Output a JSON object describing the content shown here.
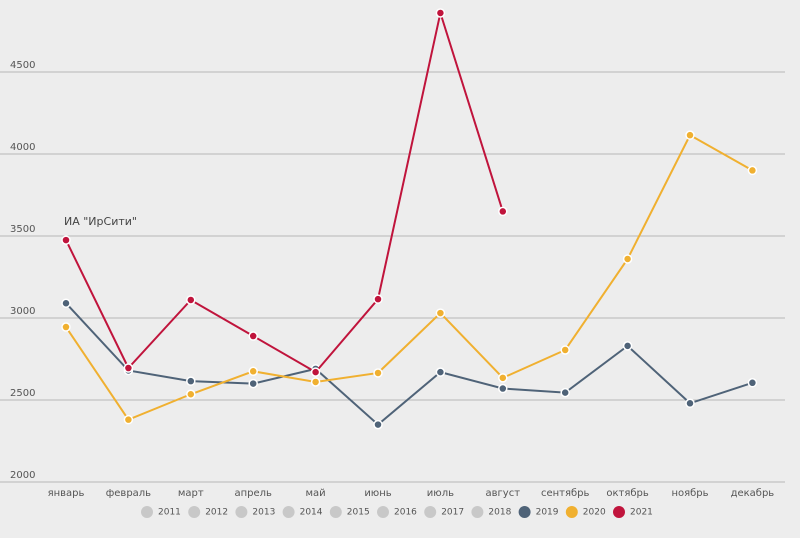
{
  "chart_data": {
    "type": "line",
    "annotation": "ИА \"ИрСити\"",
    "categories": [
      "январь",
      "февраль",
      "март",
      "апрель",
      "май",
      "июнь",
      "июль",
      "август",
      "сентябрь",
      "октябрь",
      "ноябрь",
      "декабрь"
    ],
    "ylim": [
      2000,
      4900
    ],
    "yticks": [
      2000,
      2500,
      3000,
      3500,
      4000,
      4500
    ],
    "grid": true,
    "legend": "bottom",
    "series": [
      {
        "name": "2011",
        "color": "#c8c8c8",
        "values": [
          null,
          null,
          null,
          null,
          null,
          null,
          null,
          null,
          null,
          null,
          null,
          null
        ]
      },
      {
        "name": "2012",
        "color": "#c8c8c8",
        "values": [
          null,
          null,
          null,
          null,
          null,
          null,
          null,
          null,
          null,
          null,
          null,
          null
        ]
      },
      {
        "name": "2013",
        "color": "#c8c8c8",
        "values": [
          null,
          null,
          null,
          null,
          null,
          null,
          null,
          null,
          null,
          null,
          null,
          null
        ]
      },
      {
        "name": "2014",
        "color": "#c8c8c8",
        "values": [
          null,
          null,
          null,
          null,
          null,
          null,
          null,
          null,
          null,
          null,
          null,
          null
        ]
      },
      {
        "name": "2015",
        "color": "#c8c8c8",
        "values": [
          null,
          null,
          null,
          null,
          null,
          null,
          null,
          null,
          null,
          null,
          null,
          null
        ]
      },
      {
        "name": "2016",
        "color": "#c8c8c8",
        "values": [
          null,
          null,
          null,
          null,
          null,
          null,
          null,
          null,
          null,
          null,
          null,
          null
        ]
      },
      {
        "name": "2017",
        "color": "#c8c8c8",
        "values": [
          null,
          null,
          null,
          null,
          null,
          null,
          null,
          null,
          null,
          null,
          null,
          null
        ]
      },
      {
        "name": "2018",
        "color": "#c8c8c8",
        "values": [
          null,
          null,
          null,
          null,
          null,
          null,
          null,
          null,
          null,
          null,
          null,
          null
        ]
      },
      {
        "name": "2019",
        "color": "#4f6378",
        "values": [
          3090,
          2680,
          2615,
          2600,
          2690,
          2350,
          2670,
          2570,
          2545,
          2830,
          2480,
          2605
        ]
      },
      {
        "name": "2020",
        "color": "#f0b030",
        "values": [
          2945,
          2380,
          2535,
          2675,
          2610,
          2665,
          3030,
          2635,
          2805,
          3360,
          4115,
          3900
        ]
      },
      {
        "name": "2021",
        "color": "#c0143c",
        "values": [
          3475,
          2695,
          3110,
          2890,
          2670,
          3115,
          4860,
          3650,
          null,
          null,
          null,
          null
        ]
      }
    ]
  }
}
